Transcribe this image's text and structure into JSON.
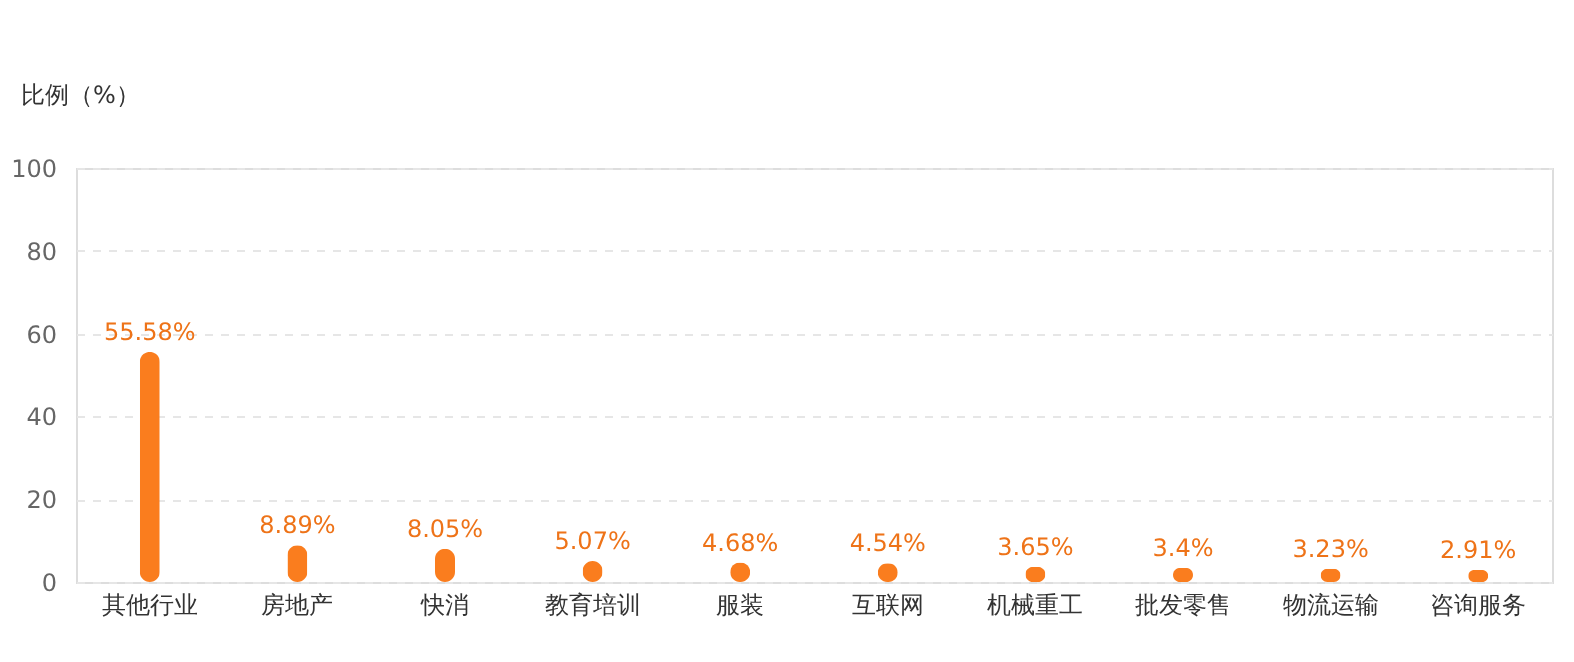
{
  "chart_data": {
    "type": "bar",
    "ylabel": "比例（%）",
    "categories": [
      "其他行业",
      "房地产",
      "快消",
      "教育培训",
      "服装",
      "互联网",
      "机械重工",
      "批发零售",
      "物流运输",
      "咨询服务"
    ],
    "values": [
      55.58,
      8.89,
      8.05,
      5.07,
      4.68,
      4.54,
      3.65,
      3.4,
      3.23,
      2.91
    ],
    "value_labels": [
      "55.58%",
      "8.89%",
      "8.05%",
      "5.07%",
      "4.68%",
      "4.54%",
      "3.65%",
      "3.4%",
      "3.23%",
      "2.91%"
    ],
    "color": "#fa7d1e",
    "ylim": [
      0,
      100
    ],
    "yticks": [
      0,
      20,
      40,
      60,
      80,
      100
    ],
    "grid": "y"
  }
}
